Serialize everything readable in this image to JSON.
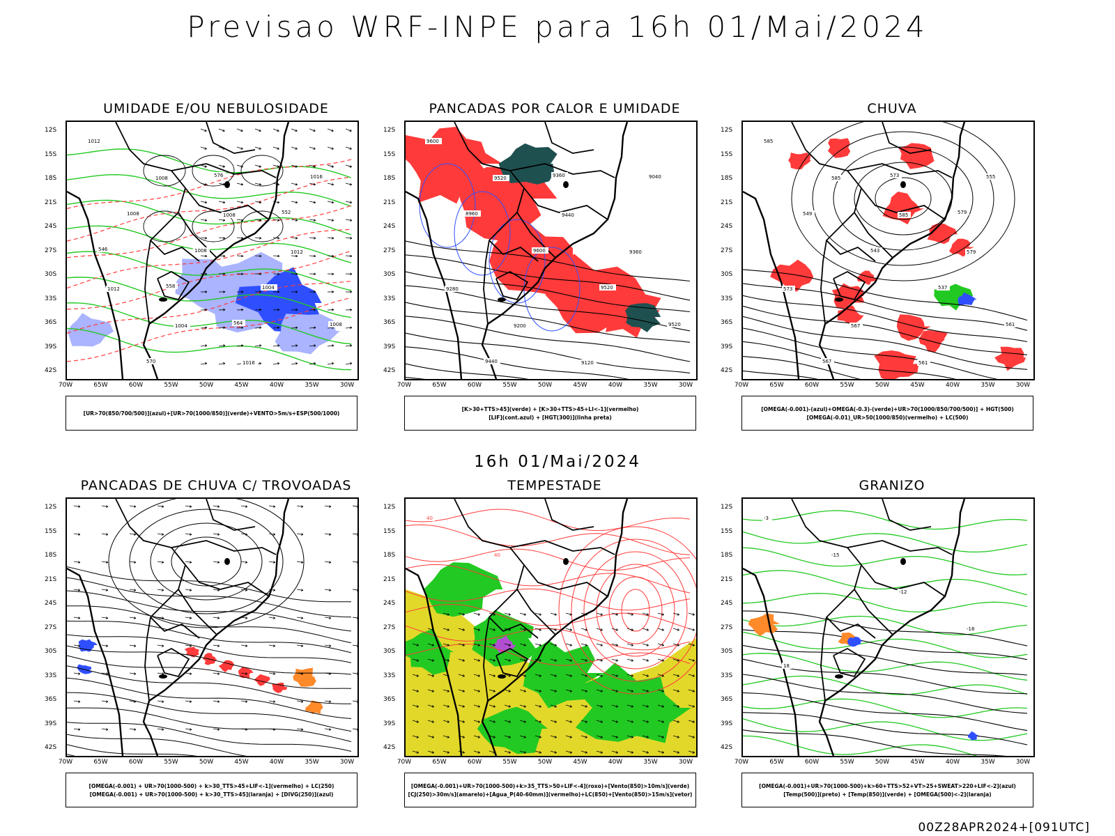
{
  "title": "Previsao WRF-INPE  para 16h 01/Mai/2024",
  "subtitle": "16h 01/Mai/2024",
  "footer": "00Z28APR2024+[091UTC]",
  "axes": {
    "lat": [
      "12S",
      "15S",
      "18S",
      "21S",
      "24S",
      "27S",
      "30S",
      "33S",
      "36S",
      "39S",
      "42S"
    ],
    "lon": [
      "70W",
      "65W",
      "60W",
      "55W",
      "50W",
      "45W",
      "40W",
      "35W",
      "30W"
    ]
  },
  "colors": {
    "green": "#22c922",
    "red": "#ff3a3a",
    "blue": "#2f4fff",
    "lightblue": "#aab4ff",
    "darkteal": "#1f5050",
    "yellow": "#e2d82a",
    "orange": "#ff8a2a",
    "purple": "#b24fd1"
  },
  "panels": [
    {
      "id": "umidade",
      "title": "UMIDADE E/OU NEBULOSIDADE",
      "legend": [
        "[UR>70(850/700/500)](azul)+[UR>70(1000/850)](verde)+VENTO>5m/s+ESP(500/1000)"
      ],
      "contour_labels": [
        "1012",
        "1008",
        "1008",
        "1012",
        "1012",
        "1004",
        "1016",
        "1016",
        "1008",
        "1008",
        "1004",
        "1008",
        "570",
        "576",
        "552",
        "546",
        "558",
        "564"
      ]
    },
    {
      "id": "pancadas-calor",
      "title": "PANCADAS POR CALOR E UMIDADE",
      "legend": [
        "[K>30+TTS>45](verde) + [K>30+TTS>45+LI<-1](vermelho)",
        "[LIF](cont.azul) + [HGT(300)](linha preta)"
      ],
      "contour_labels": [
        "9600",
        "9520",
        "9440",
        "9360",
        "9280",
        "9200",
        "9120",
        "9040",
        "8960",
        "9600",
        "9520",
        "9520",
        "9440",
        "9360"
      ]
    },
    {
      "id": "chuva",
      "title": "CHUVA",
      "legend": [
        "[OMEGA(-0.001)-(azul)+OMEGA(-0.3)-(verde)+UR>70(1000/850/700/500)] + HGT(500)",
        "[OMEGA(-0.01)_UR>50(1000/850)(vermelho) + LC(500)"
      ],
      "contour_labels": [
        "585",
        "585",
        "585",
        "579",
        "573",
        "567",
        "561",
        "555",
        "549",
        "543",
        "537",
        "561",
        "567",
        "573",
        "579"
      ]
    },
    {
      "id": "pancadas-trovoadas",
      "title": "PANCADAS DE CHUVA C/ TROVOADAS",
      "legend": [
        "[OMEGA(-0.001) + UR>70(1000-500) + k>30_TTS>45+LIF<-1](vermelho) + LC(250)",
        "[OMEGA(-0.001) + UR>70(1000-500) + k>30_TTS>45](laranja) + [DIVG(250)](azul)"
      ],
      "contour_labels": []
    },
    {
      "id": "tempestade",
      "title": "TEMPESTADE",
      "legend": [
        "[OMEGA(-0.001)+UR>70(1000-500)+k>35_TTS>50+LIF<-4](roxo)+[Vento(850)>10m/s](verde)",
        "[CJ(250)>30m/s](amarelo)+[Agua_P(40-60mm)](vermelho)+LC(850)+[Vento(850)>15m/s](vetor)"
      ],
      "contour_labels": [
        "40",
        "40"
      ]
    },
    {
      "id": "granizo",
      "title": "GRANIZO",
      "legend": [
        "[OMEGA(-0.001)+UR>70(1000-500)+k>60+TTS>52+VT>25+SWEAT>220+LIF<-2](azul)",
        "[Temp(500)](preto) + [Temp(850)](verde) + [OMEGA(500)<-2](laranja)"
      ],
      "contour_labels": [
        "-3",
        "-15",
        "-12",
        "-18",
        "18"
      ]
    }
  ]
}
